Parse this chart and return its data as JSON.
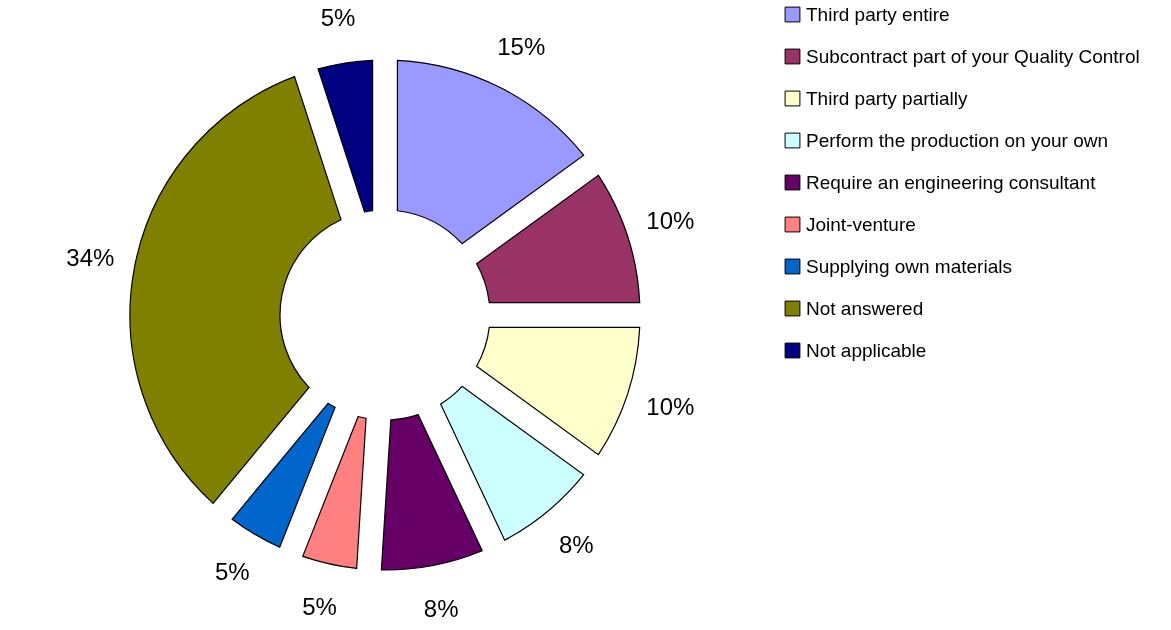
{
  "chart_data": {
    "type": "donut",
    "categories": [
      "Third party entire",
      "Subcontract part of your Quality Control",
      "Third party partially",
      "Perform the production on your own",
      "Require an engineering consultant",
      "Joint-venture",
      "Supplying own materials",
      "Not answered",
      "Not applicable"
    ],
    "values": [
      15,
      10,
      10,
      8,
      8,
      5,
      5,
      34,
      5
    ],
    "value_labels": [
      "15%",
      "10%",
      "10%",
      "8%",
      "8%",
      "5%",
      "5%",
      "34%",
      "5%"
    ],
    "colors": [
      "#9999ff",
      "#993366",
      "#ffffcc",
      "#ccffff",
      "#660066",
      "#ff8080",
      "#0066cc",
      "#808000",
      "#000080"
    ],
    "legend": "right"
  }
}
